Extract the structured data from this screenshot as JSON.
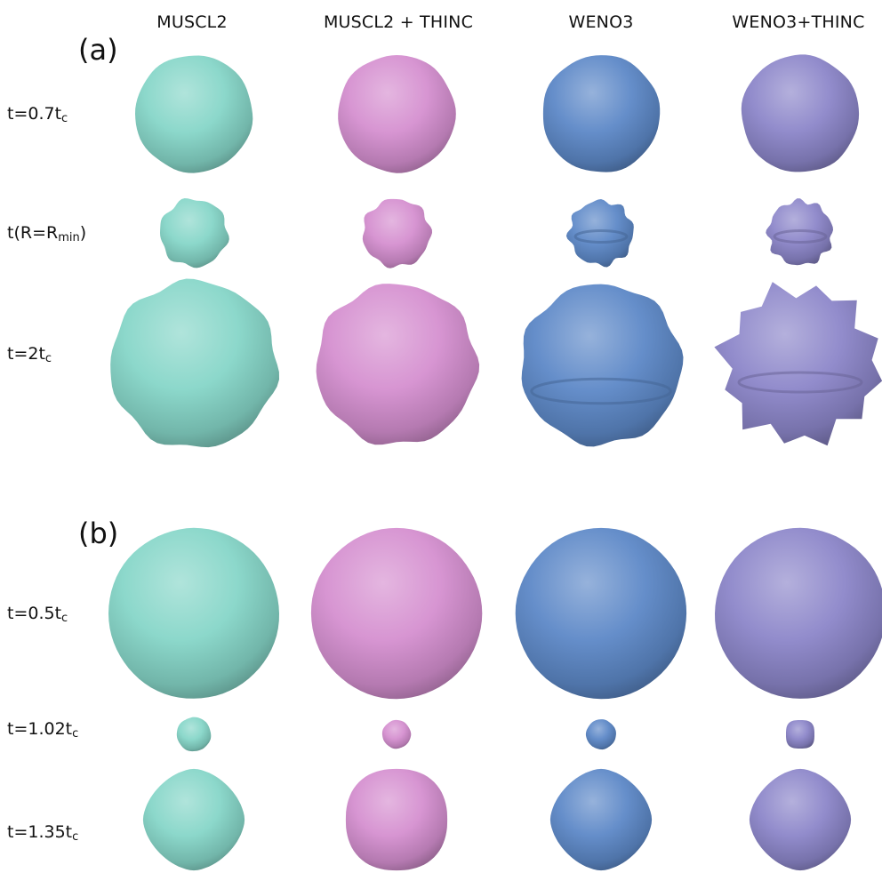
{
  "columns": [
    {
      "label": "MUSCL2",
      "color": "#86d6c8"
    },
    {
      "label": "MUSCL2 + THINC",
      "color": "#d58fd0"
    },
    {
      "label": "WENO3",
      "color": "#5d88c7"
    },
    {
      "label": "WENO3+THINC",
      "color": "#8c86c9"
    }
  ],
  "panels": [
    {
      "label": "(a)",
      "rows": [
        {
          "label_main": "t=0.7t",
          "label_sub": "c",
          "shape": "smooth"
        },
        {
          "label_main": "t(R=R",
          "label_sub": "min",
          "label_tail": ")",
          "shape": "small-rough"
        },
        {
          "label_main": "t=2t",
          "label_sub": "c",
          "shape": "large-rough"
        }
      ]
    },
    {
      "label": "(b)",
      "rows": [
        {
          "label_main": "t=0.5t",
          "label_sub": "c",
          "shape": "sphere"
        },
        {
          "label_main": "t=1.02t",
          "label_sub": "c",
          "shape": "tiny"
        },
        {
          "label_main": "t=1.35t",
          "label_sub": "c",
          "shape": "octahedral"
        }
      ]
    }
  ]
}
